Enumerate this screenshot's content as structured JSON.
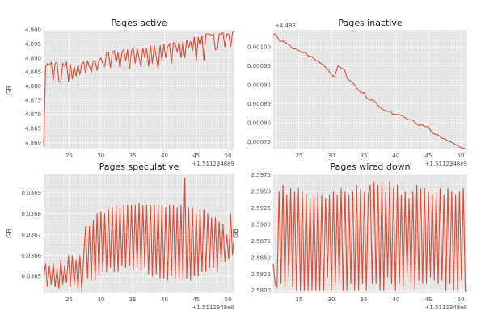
{
  "figure": {
    "line_color": "#e24a33",
    "background": "#e5e5e5",
    "grid_color": "#ffffff"
  },
  "chart_data": [
    {
      "type": "line",
      "title": "Pages active",
      "ylabel": "GB",
      "xlim": [
        21,
        51
      ],
      "ylim": [
        4.8575,
        4.9
      ],
      "xticks": [
        25,
        30,
        35,
        40,
        45,
        50
      ],
      "yticks": [
        4.86,
        4.865,
        4.87,
        4.875,
        4.88,
        4.885,
        4.89,
        4.895,
        4.9
      ],
      "ytick_labels": [
        "4.860",
        "4.865",
        "4.870",
        "4.875",
        "4.880",
        "4.885",
        "4.890",
        "4.895",
        "4.900"
      ],
      "x_offset_label": "+1.5112348e9",
      "y_offset_label": "",
      "x": [
        21.0,
        21.3,
        21.6,
        21.9,
        22.2,
        22.5,
        22.8,
        23.1,
        23.4,
        23.7,
        24.0,
        24.3,
        24.6,
        24.9,
        25.2,
        25.5,
        25.8,
        26.1,
        26.4,
        26.7,
        27.0,
        27.3,
        27.6,
        27.9,
        28.2,
        28.5,
        28.8,
        29.1,
        29.4,
        29.7,
        30.0,
        30.3,
        30.6,
        30.9,
        31.2,
        31.5,
        31.8,
        32.1,
        32.4,
        32.7,
        33.0,
        33.3,
        33.6,
        33.9,
        34.2,
        34.5,
        34.8,
        35.1,
        35.4,
        35.7,
        36.0,
        36.3,
        36.6,
        36.9,
        37.2,
        37.5,
        37.8,
        38.1,
        38.4,
        38.7,
        39.0,
        39.3,
        39.6,
        39.9,
        40.2,
        40.5,
        40.8,
        41.1,
        41.4,
        41.7,
        42.0,
        42.3,
        42.6,
        42.9,
        43.2,
        43.5,
        43.8,
        44.1,
        44.4,
        44.7,
        45.0,
        45.3,
        45.6,
        45.9,
        46.2,
        46.5,
        46.8,
        47.1,
        47.4,
        47.7,
        48.0,
        48.3,
        48.6,
        48.9,
        49.2,
        49.5,
        49.8,
        50.1,
        50.4,
        50.7,
        51.0
      ],
      "y": [
        4.8585,
        4.887,
        4.888,
        4.8875,
        4.8885,
        4.882,
        4.888,
        4.8885,
        4.8815,
        4.8815,
        4.888,
        4.887,
        4.8885,
        4.8815,
        4.888,
        4.8825,
        4.887,
        4.8835,
        4.8875,
        4.884,
        4.888,
        4.8885,
        4.8845,
        4.889,
        4.887,
        4.885,
        4.889,
        4.889,
        4.8855,
        4.889,
        4.89,
        4.888,
        4.887,
        4.892,
        4.892,
        4.8865,
        4.892,
        4.8925,
        4.8885,
        4.892,
        4.8865,
        4.892,
        4.893,
        4.889,
        4.893,
        4.886,
        4.8925,
        4.8935,
        4.888,
        4.8935,
        4.89,
        4.887,
        4.8935,
        4.89,
        4.8935,
        4.887,
        4.8945,
        4.888,
        4.8945,
        4.8905,
        4.886,
        4.8945,
        4.889,
        4.895,
        4.89,
        4.894,
        4.895,
        4.888,
        4.8955,
        4.895,
        4.892,
        4.896,
        4.89,
        4.896,
        4.89,
        4.8965,
        4.8935,
        4.896,
        4.8925,
        4.8975,
        4.889,
        4.8975,
        4.8945,
        4.898,
        4.889,
        4.8985,
        4.8985,
        4.8985,
        4.898,
        4.8985,
        4.893,
        4.893,
        4.8985,
        4.8985,
        4.899,
        4.894,
        4.8985,
        4.8985,
        4.894,
        4.899,
        4.8995
      ]
    },
    {
      "type": "line",
      "title": "Pages inactive",
      "ylabel": "",
      "xlim": [
        21,
        51
      ],
      "ylim": [
        0.00073,
        0.001045
      ],
      "xticks": [
        25,
        30,
        35,
        40,
        45,
        50
      ],
      "yticks": [
        0.00075,
        0.0008,
        0.00085,
        0.0009,
        0.00095,
        0.001
      ],
      "ytick_labels": [
        "0.00075",
        "0.00080",
        "0.00085",
        "0.00090",
        "0.00095",
        "0.00100"
      ],
      "x_offset_label": "+1.5112348e9",
      "y_offset_label": "+4.483",
      "x": [
        21,
        21.5,
        22,
        22.5,
        23,
        23.5,
        24,
        24.5,
        25,
        25.5,
        26,
        26.5,
        27,
        27.5,
        28,
        28.5,
        29,
        29.5,
        30,
        30.5,
        31,
        31.5,
        32,
        32.5,
        33,
        33.5,
        34,
        34.5,
        35,
        35.5,
        36,
        36.5,
        37,
        37.5,
        38,
        38.5,
        39,
        39.5,
        40,
        40.5,
        41,
        41.5,
        42,
        42.5,
        43,
        43.5,
        44,
        44.5,
        45,
        45.5,
        46,
        46.5,
        47,
        47.5,
        48,
        48.5,
        49,
        49.5,
        50,
        50.5,
        51
      ],
      "y": [
        0.001035,
        0.00103,
        0.001015,
        0.001015,
        0.00101,
        0.001005,
        0.000995,
        0.000995,
        0.00099,
        0.000985,
        0.000985,
        0.000975,
        0.000975,
        0.000965,
        0.000962,
        0.000955,
        0.000948,
        0.00094,
        0.000925,
        0.000922,
        0.00095,
        0.000945,
        0.00094,
        0.000915,
        0.00091,
        0.000902,
        0.00089,
        0.00088,
        0.00088,
        0.000865,
        0.00086,
        0.00086,
        0.00085,
        0.00084,
        0.000835,
        0.00083,
        0.00083,
        0.000823,
        0.000822,
        0.000822,
        0.000818,
        0.000812,
        0.000808,
        0.000808,
        0.0008,
        0.000793,
        0.000795,
        0.00079,
        0.00079,
        0.000775,
        0.00077,
        0.000768,
        0.00076,
        0.000758,
        0.000752,
        0.00075,
        0.000745,
        0.00074,
        0.000735,
        0.000733,
        0.00073
      ]
    },
    {
      "type": "line",
      "title": "Pages speculative",
      "ylabel": "GB",
      "xlim": [
        21,
        51
      ],
      "ylim": [
        0.03642,
        0.03699
      ],
      "xticks": [
        25,
        30,
        35,
        40,
        45,
        50
      ],
      "yticks": [
        0.0365,
        0.0366,
        0.0367,
        0.0368,
        0.0369
      ],
      "ytick_labels": [
        "0.0365",
        "0.0366",
        "0.0367",
        "0.0368",
        "0.0369"
      ],
      "x_offset_label": "+1.5112348e9",
      "y_offset_label": "",
      "x": [
        21.0,
        21.3,
        21.6,
        21.9,
        22.2,
        22.5,
        22.8,
        23.1,
        23.4,
        23.7,
        24.0,
        24.3,
        24.6,
        24.9,
        25.2,
        25.5,
        25.8,
        26.1,
        26.4,
        26.7,
        27.0,
        27.3,
        27.6,
        27.9,
        28.2,
        28.5,
        28.8,
        29.1,
        29.4,
        29.7,
        30.0,
        30.3,
        30.6,
        30.9,
        31.2,
        31.5,
        31.8,
        32.1,
        32.4,
        32.7,
        33.0,
        33.3,
        33.6,
        33.9,
        34.2,
        34.5,
        34.8,
        35.1,
        35.4,
        35.7,
        36.0,
        36.3,
        36.6,
        36.9,
        37.2,
        37.5,
        37.8,
        38.1,
        38.4,
        38.7,
        39.0,
        39.3,
        39.6,
        39.9,
        40.2,
        40.5,
        40.8,
        41.1,
        41.4,
        41.7,
        42.0,
        42.3,
        42.6,
        42.9,
        43.2,
        43.5,
        43.8,
        44.1,
        44.4,
        44.7,
        45.0,
        45.3,
        45.6,
        45.9,
        46.2,
        46.5,
        46.8,
        47.1,
        47.4,
        47.7,
        48.0,
        48.3,
        48.6,
        48.9,
        49.2,
        49.5,
        49.8,
        50.1,
        50.4,
        50.7,
        51.0
      ],
      "y": [
        0.0365,
        0.03656,
        0.03645,
        0.03655,
        0.03646,
        0.03656,
        0.03645,
        0.03654,
        0.03644,
        0.03658,
        0.03646,
        0.03655,
        0.03647,
        0.0366,
        0.03645,
        0.0366,
        0.03646,
        0.03658,
        0.03644,
        0.0366,
        0.03643,
        0.0366,
        0.03674,
        0.03649,
        0.03674,
        0.03648,
        0.03677,
        0.03648,
        0.0368,
        0.0365,
        0.03681,
        0.03652,
        0.0368,
        0.03652,
        0.03682,
        0.03654,
        0.03683,
        0.03652,
        0.03684,
        0.03652,
        0.03683,
        0.03655,
        0.03684,
        0.03654,
        0.03684,
        0.03655,
        0.03684,
        0.03653,
        0.03684,
        0.03654,
        0.03685,
        0.03653,
        0.03684,
        0.03654,
        0.03684,
        0.03651,
        0.03684,
        0.0365,
        0.03684,
        0.03651,
        0.03684,
        0.03649,
        0.03684,
        0.03649,
        0.03683,
        0.03648,
        0.03684,
        0.0365,
        0.03684,
        0.03649,
        0.03683,
        0.03648,
        0.03684,
        0.03648,
        0.03697,
        0.03649,
        0.03683,
        0.03648,
        0.03683,
        0.0365,
        0.0368,
        0.0365,
        0.03682,
        0.03652,
        0.03682,
        0.03652,
        0.0368,
        0.03654,
        0.03678,
        0.03654,
        0.03678,
        0.03652,
        0.03676,
        0.03657,
        0.03675,
        0.03657,
        0.0367,
        0.03658,
        0.0368,
        0.0366,
        0.0367
      ]
    },
    {
      "type": "line",
      "title": "Pages wired down",
      "ylabel": "GB",
      "xlim": [
        21,
        51
      ],
      "ylim": [
        2.5796,
        2.5977
      ],
      "xticks": [
        25,
        30,
        35,
        40,
        45,
        50
      ],
      "yticks": [
        2.58,
        2.5825,
        2.585,
        2.5875,
        2.59,
        2.5925,
        2.595,
        2.5975
      ],
      "ytick_labels": [
        "2.5800",
        "2.5825",
        "2.5850",
        "2.5875",
        "2.5900",
        "2.5925",
        "2.5950",
        "2.5975"
      ],
      "x_offset_label": "+1.5112348e9",
      "y_offset_label": "",
      "x": [
        21.0,
        21.3,
        21.6,
        21.9,
        22.2,
        22.5,
        22.8,
        23.1,
        23.4,
        23.7,
        24.0,
        24.3,
        24.6,
        24.9,
        25.2,
        25.5,
        25.8,
        26.1,
        26.4,
        26.7,
        27.0,
        27.3,
        27.6,
        27.9,
        28.2,
        28.5,
        28.8,
        29.1,
        29.4,
        29.7,
        30.0,
        30.3,
        30.6,
        30.9,
        31.2,
        31.5,
        31.8,
        32.1,
        32.4,
        32.7,
        33.0,
        33.3,
        33.6,
        33.9,
        34.2,
        34.5,
        34.8,
        35.1,
        35.4,
        35.7,
        36.0,
        36.3,
        36.6,
        36.9,
        37.2,
        37.5,
        37.8,
        38.1,
        38.4,
        38.7,
        39.0,
        39.3,
        39.6,
        39.9,
        40.2,
        40.5,
        40.8,
        41.1,
        41.4,
        41.7,
        42.0,
        42.3,
        42.6,
        42.9,
        43.2,
        43.5,
        43.8,
        44.1,
        44.4,
        44.7,
        45.0,
        45.3,
        45.6,
        45.9,
        46.2,
        46.5,
        46.8,
        47.1,
        47.4,
        47.7,
        48.0,
        48.3,
        48.6,
        48.9,
        49.2,
        49.5,
        49.8,
        50.1,
        50.4,
        50.7,
        51.0
      ],
      "y": [
        2.584,
        2.581,
        2.5805,
        2.595,
        2.581,
        2.596,
        2.5805,
        2.5945,
        2.582,
        2.5955,
        2.5805,
        2.595,
        2.58,
        2.5955,
        2.58,
        2.595,
        2.58,
        2.5945,
        2.58,
        2.594,
        2.58,
        2.5945,
        2.58,
        2.595,
        2.58,
        2.5945,
        2.58,
        2.594,
        2.582,
        2.5945,
        2.58,
        2.595,
        2.581,
        2.5945,
        2.581,
        2.5955,
        2.58,
        2.595,
        2.58,
        2.5945,
        2.581,
        2.595,
        2.58,
        2.596,
        2.58,
        2.5955,
        2.581,
        2.595,
        2.58,
        2.5945,
        2.596,
        2.581,
        2.5965,
        2.581,
        2.596,
        2.58,
        2.5965,
        2.58,
        2.595,
        2.582,
        2.5965,
        2.581,
        2.5955,
        2.58,
        2.596,
        2.581,
        2.5945,
        2.5805,
        2.595,
        2.582,
        2.594,
        2.581,
        2.595,
        2.58,
        2.596,
        2.5815,
        2.5955,
        2.581,
        2.5955,
        2.581,
        2.595,
        2.582,
        2.5945,
        2.5815,
        2.595,
        2.581,
        2.5955,
        2.5815,
        2.5945,
        2.58,
        2.5955,
        2.581,
        2.595,
        2.58,
        2.5945,
        2.58,
        2.595,
        2.5815,
        2.5955,
        2.58,
        2.58
      ]
    }
  ]
}
